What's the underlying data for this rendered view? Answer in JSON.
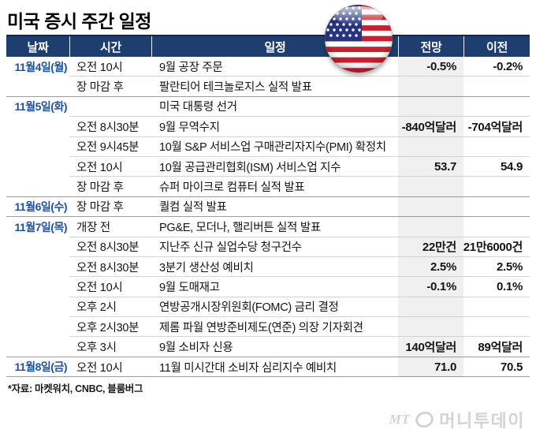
{
  "title": "미국 증시 주간 일정",
  "flag_icon": "us-flag-icon",
  "chart_data": {
    "type": "table",
    "columns": [
      "날짜",
      "시간",
      "일정",
      "전망",
      "이전"
    ],
    "rows": [
      {
        "date": "11월4일(월)",
        "time": "오전 10시",
        "event": "9월 공장 주문",
        "forecast": "-0.5%",
        "previous": "-0.2%",
        "group_start": true
      },
      {
        "date": "",
        "time": "장 마감 후",
        "event": "팔란티어 테크놀로지스 실적 발표",
        "forecast": "",
        "previous": "",
        "group_start": false
      },
      {
        "date": "11월5일(화)",
        "time": "",
        "event": "미국 대통령 선거",
        "forecast": "",
        "previous": "",
        "group_start": true
      },
      {
        "date": "",
        "time": "오전 8시30분",
        "event": "9월 무역수지",
        "forecast": "-840억달러",
        "previous": "-704억달러",
        "group_start": false
      },
      {
        "date": "",
        "time": "오전 9시45분",
        "event": "10월 S&P 서비스업 구매관리자지수(PMI) 확정치",
        "forecast": "",
        "previous": "",
        "group_start": false
      },
      {
        "date": "",
        "time": "오전 10시",
        "event": "10월 공급관리협회(ISM) 서비스업 지수",
        "forecast": "53.7",
        "previous": "54.9",
        "group_start": false
      },
      {
        "date": "",
        "time": "장 마감 후",
        "event": "슈퍼 마이크로 컴퓨터 실적 발표",
        "forecast": "",
        "previous": "",
        "group_start": false
      },
      {
        "date": "11월6일(수)",
        "time": "장 마감 후",
        "event": "퀄컴 실적 발표",
        "forecast": "",
        "previous": "",
        "group_start": true
      },
      {
        "date": "11월7일(목)",
        "time": "개장 전",
        "event": "PG&E, 모더나, 핼리버튼 실적 발표",
        "forecast": "",
        "previous": "",
        "group_start": true
      },
      {
        "date": "",
        "time": "오전 8시30분",
        "event": "지난주 신규 실업수당 청구건수",
        "forecast": "22만건",
        "previous": "21만6000건",
        "group_start": false
      },
      {
        "date": "",
        "time": "오전 8시30분",
        "event": "3분기 생산성 예비치",
        "forecast": "2.5%",
        "previous": "2.5%",
        "group_start": false
      },
      {
        "date": "",
        "time": "오전 10시",
        "event": "9월 도매재고",
        "forecast": "-0.1%",
        "previous": "0.1%",
        "group_start": false
      },
      {
        "date": "",
        "time": "오후 2시",
        "event": "연방공개시장위원회(FOMC) 금리 결정",
        "forecast": "",
        "previous": "",
        "group_start": false
      },
      {
        "date": "",
        "time": "오후 2시30분",
        "event": "제롬 파월 연방준비제도(연준) 의장 기자회견",
        "forecast": "",
        "previous": "",
        "group_start": false
      },
      {
        "date": "",
        "time": "오후 3시",
        "event": "9월 소비자 신용",
        "forecast": "140억달러",
        "previous": "89억달러",
        "group_start": false
      },
      {
        "date": "11월8일(금)",
        "time": "오전 10시",
        "event": "11월 미시간대 소비자 심리지수 예비치",
        "forecast": "71.0",
        "previous": "70.5",
        "group_start": true
      }
    ]
  },
  "footnote": "*자료: 마켓워치, CNBC, 블룸버그",
  "logo": {
    "mt": "MT",
    "name": "머니투데이"
  },
  "colors": {
    "header_bg": "#1d3e6e",
    "header_top_border": "#102a4e",
    "date_text": "#1e52a2",
    "forecast_column_bg": "#f0f0f0",
    "separator_light": "#d2d2d2",
    "separator_dark": "#9a9a9a",
    "flag_red": "#c8202f",
    "flag_blue": "#27357e",
    "logo_gray": "#d3d3d3"
  }
}
